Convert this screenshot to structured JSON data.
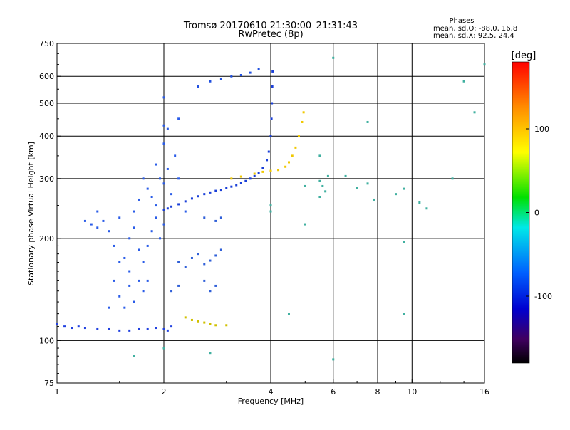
{
  "header": {
    "title_line1": "Tromsø 20170610 21:30:00–21:31:43",
    "title_line2": "RwPretec (8p)"
  },
  "phase_info": {
    "heading": "Phases",
    "line_o": "mean, sd,O: -88.0, 16.8",
    "line_x": "mean, sd,X:  92.5, 24.4"
  },
  "chart_data": {
    "type": "scatter",
    "title": "Tromsø 20170610 21:30:00–21:31:43",
    "subtitle": "RwPretec (8p)",
    "xlabel": "Frequency [MHz]",
    "ylabel": "Stationary phase Virtual Height [km]",
    "x_scale": "log",
    "y_scale": "log",
    "xlim": [
      1,
      16
    ],
    "ylim": [
      75,
      750
    ],
    "x_ticks": [
      1,
      2,
      4,
      6,
      8,
      10,
      16
    ],
    "x_ticklabels": [
      "1",
      "2",
      "4",
      "6",
      "8",
      "10",
      "16"
    ],
    "x_grid": [
      2,
      4,
      6,
      8,
      10
    ],
    "y_ticks": [
      75,
      100,
      200,
      300,
      400,
      500,
      600,
      750
    ],
    "y_ticklabels": [
      "75",
      "100",
      "200",
      "300",
      "400",
      "500",
      "600",
      "750"
    ],
    "y_grid": [
      100,
      200,
      300,
      400,
      500,
      600
    ],
    "colorbar": {
      "label": "[deg]",
      "range": [
        -180,
        180
      ],
      "ticks": [
        100,
        0,
        -100
      ],
      "ticklabels": [
        "100",
        "0",
        "-100"
      ]
    },
    "series": [
      {
        "name": "O-mode E-region trace",
        "color": "#2040e0",
        "points": [
          [
            1.0,
            112
          ],
          [
            1.05,
            110
          ],
          [
            1.1,
            109
          ],
          [
            1.15,
            110
          ],
          [
            1.2,
            109
          ],
          [
            1.3,
            108
          ],
          [
            1.4,
            108
          ],
          [
            1.5,
            107
          ],
          [
            1.6,
            107
          ],
          [
            1.7,
            108
          ],
          [
            1.8,
            108
          ],
          [
            1.9,
            109
          ],
          [
            2.0,
            108
          ],
          [
            2.05,
            107
          ],
          [
            2.1,
            110
          ]
        ]
      },
      {
        "name": "O-mode F-region trace",
        "color": "#1a3fd8",
        "points": [
          [
            2.0,
            243
          ],
          [
            2.05,
            245
          ],
          [
            2.1,
            248
          ],
          [
            2.2,
            252
          ],
          [
            2.3,
            257
          ],
          [
            2.4,
            262
          ],
          [
            2.5,
            266
          ],
          [
            2.6,
            270
          ],
          [
            2.7,
            273
          ],
          [
            2.8,
            276
          ],
          [
            2.9,
            278
          ],
          [
            3.0,
            281
          ],
          [
            3.1,
            284
          ],
          [
            3.2,
            287
          ],
          [
            3.3,
            291
          ],
          [
            3.4,
            295
          ],
          [
            3.5,
            300
          ],
          [
            3.6,
            305
          ],
          [
            3.7,
            312
          ],
          [
            3.8,
            322
          ],
          [
            3.9,
            340
          ],
          [
            3.95,
            360
          ],
          [
            4.0,
            400
          ],
          [
            4.02,
            450
          ],
          [
            4.03,
            500
          ],
          [
            4.04,
            560
          ],
          [
            4.05,
            620
          ]
        ]
      },
      {
        "name": "X-mode F-region trace",
        "color": "#f0c800",
        "points": [
          [
            3.1,
            300
          ],
          [
            3.3,
            304
          ],
          [
            3.6,
            310
          ],
          [
            3.8,
            314
          ],
          [
            4.0,
            316
          ],
          [
            4.2,
            318
          ],
          [
            4.4,
            325
          ],
          [
            4.5,
            335
          ],
          [
            4.6,
            350
          ],
          [
            4.7,
            370
          ],
          [
            4.8,
            400
          ],
          [
            4.9,
            440
          ],
          [
            4.95,
            470
          ]
        ]
      },
      {
        "name": "X-mode sporadic trace",
        "color": "#d0c000",
        "points": [
          [
            2.3,
            117
          ],
          [
            2.4,
            115
          ],
          [
            2.5,
            114
          ],
          [
            2.6,
            113
          ],
          [
            2.7,
            112
          ],
          [
            2.8,
            111
          ],
          [
            3.0,
            111
          ]
        ]
      },
      {
        "name": "Upper echo trace",
        "color": "#2050e0",
        "points": [
          [
            2.5,
            560
          ],
          [
            2.7,
            580
          ],
          [
            2.9,
            590
          ],
          [
            3.1,
            600
          ],
          [
            3.3,
            605
          ],
          [
            3.5,
            615
          ],
          [
            3.7,
            630
          ]
        ]
      },
      {
        "name": "Spread F scatter",
        "color": "#2a5ce8",
        "points": [
          [
            1.3,
            240
          ],
          [
            1.35,
            225
          ],
          [
            1.4,
            210
          ],
          [
            1.45,
            190
          ],
          [
            1.5,
            170
          ],
          [
            1.55,
            175
          ],
          [
            1.6,
            160
          ],
          [
            1.6,
            200
          ],
          [
            1.65,
            215
          ],
          [
            1.7,
            260
          ],
          [
            1.7,
            185
          ],
          [
            1.75,
            140
          ],
          [
            1.75,
            300
          ],
          [
            1.8,
            280
          ],
          [
            1.8,
            150
          ],
          [
            1.85,
            265
          ],
          [
            1.9,
            250
          ],
          [
            1.9,
            330
          ],
          [
            1.95,
            300
          ],
          [
            2.0,
            290
          ],
          [
            2.0,
            380
          ],
          [
            2.05,
            320
          ],
          [
            2.1,
            270
          ],
          [
            2.15,
            350
          ],
          [
            2.2,
            300
          ],
          [
            2.3,
            240
          ],
          [
            1.5,
            135
          ],
          [
            1.55,
            125
          ],
          [
            1.6,
            145
          ],
          [
            1.65,
            130
          ],
          [
            1.7,
            150
          ],
          [
            1.75,
            170
          ],
          [
            1.8,
            190
          ],
          [
            1.85,
            210
          ],
          [
            1.9,
            230
          ],
          [
            1.95,
            200
          ],
          [
            2.0,
            220
          ],
          [
            1.45,
            150
          ],
          [
            1.4,
            125
          ],
          [
            1.5,
            230
          ],
          [
            1.65,
            240
          ],
          [
            2.0,
            430
          ],
          [
            2.05,
            420
          ],
          [
            2.2,
            450
          ],
          [
            2.0,
            520
          ],
          [
            1.2,
            225
          ],
          [
            1.25,
            220
          ],
          [
            1.3,
            215
          ]
        ]
      },
      {
        "name": "Mid echoes",
        "color": "#3060d8",
        "points": [
          [
            2.2,
            170
          ],
          [
            2.3,
            165
          ],
          [
            2.4,
            175
          ],
          [
            2.5,
            180
          ],
          [
            2.6,
            168
          ],
          [
            2.7,
            172
          ],
          [
            2.8,
            178
          ],
          [
            2.9,
            185
          ],
          [
            2.6,
            150
          ],
          [
            2.7,
            140
          ],
          [
            2.8,
            145
          ],
          [
            2.2,
            145
          ],
          [
            2.1,
            140
          ],
          [
            2.9,
            230
          ],
          [
            2.6,
            230
          ],
          [
            2.8,
            225
          ]
        ]
      },
      {
        "name": "Scattered high-frequency echoes",
        "color": "#40b0a0",
        "points": [
          [
            5.5,
            295
          ],
          [
            5.6,
            285
          ],
          [
            5.7,
            275
          ],
          [
            5.8,
            305
          ],
          [
            5.5,
            265
          ],
          [
            6.0,
            680
          ],
          [
            6.5,
            305
          ],
          [
            7.0,
            282
          ],
          [
            7.5,
            290
          ],
          [
            7.5,
            440
          ],
          [
            7.8,
            260
          ],
          [
            9.0,
            270
          ],
          [
            9.5,
            280
          ],
          [
            10.5,
            255
          ],
          [
            11.0,
            245
          ],
          [
            13.0,
            300
          ],
          [
            14.0,
            580
          ],
          [
            15.0,
            470
          ],
          [
            16.0,
            650
          ],
          [
            4.0,
            250
          ],
          [
            5.0,
            285
          ],
          [
            5.5,
            350
          ],
          [
            9.5,
            195
          ],
          [
            9.5,
            120
          ],
          [
            4.5,
            120
          ],
          [
            5.0,
            220
          ],
          [
            6.0,
            88
          ],
          [
            2.7,
            92
          ],
          [
            1.65,
            90
          ],
          [
            2.0,
            95
          ],
          [
            4.0,
            240
          ]
        ]
      }
    ]
  }
}
